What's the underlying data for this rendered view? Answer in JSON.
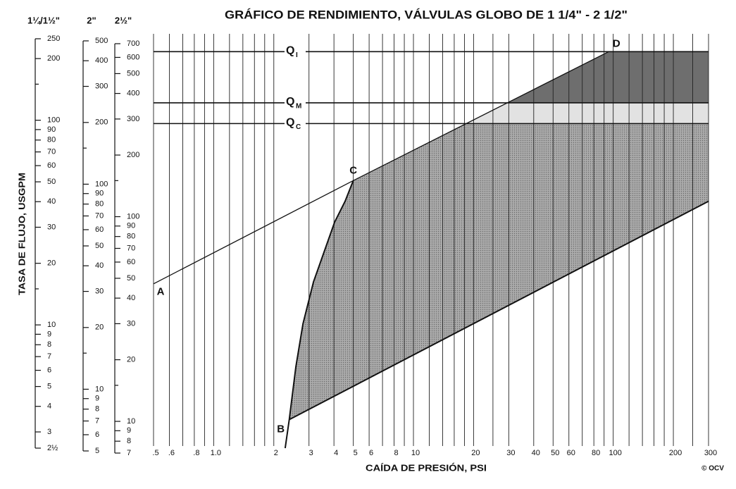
{
  "chart_data": {
    "type": "line",
    "title": "GRÁFICO DE RENDIMIENTO, VÁLVULAS GLOBO DE 1 1/4\" - 2 1/2\"",
    "xlabel": "CAÍDA DE PRESIÓN, PSI",
    "ylabel": "TASA DE FLUJO, USGPM",
    "credit": "© OCV",
    "log_x": true,
    "log_y": true,
    "xlim": [
      0.5,
      300
    ],
    "xticks": [
      {
        "value": 0.5,
        "label": ".5"
      },
      {
        "value": 0.6,
        "label": ".6"
      },
      {
        "value": 0.8,
        "label": ".8"
      },
      {
        "value": 1,
        "label": "1.0"
      },
      2,
      3,
      4,
      5,
      6,
      8,
      10,
      20,
      30,
      40,
      50,
      60,
      80,
      100,
      200,
      300
    ],
    "minor_xticks": [
      0.7,
      0.9,
      1.2,
      1.4,
      1.6,
      1.8,
      7,
      9,
      12,
      14,
      16,
      18,
      25,
      70,
      90,
      120,
      140,
      160,
      180,
      250
    ],
    "ylim": [
      7,
      700
    ],
    "y_axes": [
      {
        "label": "1¼/1½\"",
        "ylim": [
          2.5,
          250
        ],
        "ticks": [
          250,
          200,
          100,
          90,
          80,
          70,
          60,
          50,
          40,
          30,
          20,
          10,
          9,
          8,
          7,
          6,
          5,
          4,
          3,
          {
            "value": 2.5,
            "label": "2½"
          }
        ],
        "minor_ticks": [
          150,
          15
        ]
      },
      {
        "label": "2\"",
        "ylim": [
          5,
          500
        ],
        "ticks": [
          500,
          400,
          300,
          200,
          100,
          90,
          80,
          70,
          60,
          50,
          40,
          30,
          20,
          10,
          9,
          8,
          7,
          6,
          5
        ],
        "minor_ticks": [
          150,
          15
        ]
      },
      {
        "label": "2½\"",
        "ylim": [
          7,
          700
        ],
        "ticks": [
          700,
          600,
          500,
          400,
          300,
          200,
          100,
          90,
          80,
          70,
          60,
          50,
          40,
          30,
          20,
          10,
          9,
          8,
          7
        ],
        "minor_ticks": [
          150,
          15
        ]
      }
    ],
    "lines": [
      {
        "x": [
          0.5,
          5,
          95
        ],
        "y": [
          47,
          150,
          640
        ]
      },
      {
        "x": [
          2.28,
          2.39,
          2.58,
          2.8,
          3.16,
          4.03,
          4.55,
          5
        ],
        "y": [
          7.4,
          10.2,
          18.5,
          30,
          48,
          94,
          119,
          150
        ]
      },
      {
        "x": [
          2.39,
          300
        ],
        "y": [
          10.2,
          119
        ]
      }
    ],
    "points": [
      {
        "label": "A",
        "x": 0.5,
        "y": 47
      },
      {
        "label": "B",
        "x": 2.39,
        "y": 10.2
      },
      {
        "label": "C",
        "x": 5,
        "y": 150
      },
      {
        "label": "D",
        "x": 95,
        "y": 640
      }
    ],
    "levels": [
      {
        "label": "Q",
        "sub": "I",
        "value": 640
      },
      {
        "label": "Q",
        "sub": "M",
        "value": 360
      },
      {
        "label": "Q",
        "sub": "C",
        "value": 285
      }
    ],
    "region_colors": [
      "#ababab",
      "#e2e2e2",
      "#6e6e6e"
    ],
    "line_color": "#111111"
  }
}
